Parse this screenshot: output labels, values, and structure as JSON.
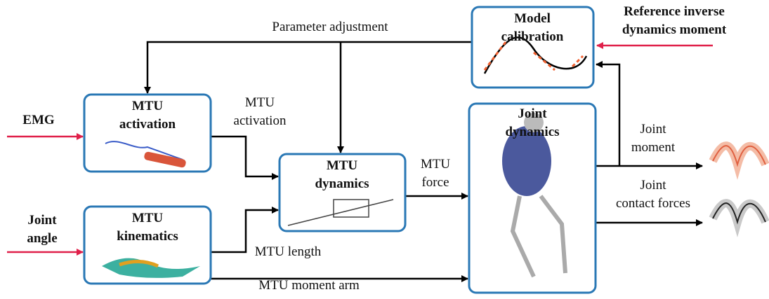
{
  "inputs": [
    {
      "lines": [
        "EMG"
      ]
    },
    {
      "lines": [
        "Joint",
        "angle"
      ]
    },
    {
      "lines": [
        "Reference inverse",
        "dynamics moment"
      ]
    }
  ],
  "nodes": [
    {
      "lines": [
        "MTU",
        "activation"
      ]
    },
    {
      "lines": [
        "MTU",
        "kinematics"
      ]
    },
    {
      "lines": [
        "MTU",
        "dynamics"
      ]
    },
    {
      "lines": [
        "Joint",
        "dynamics"
      ]
    },
    {
      "lines": [
        "Model",
        "calibration"
      ]
    }
  ],
  "edges": [
    {
      "lines": [
        "Parameter adjustment"
      ]
    },
    {
      "lines": [
        "MTU",
        "activation"
      ]
    },
    {
      "lines": [
        "MTU",
        "force"
      ]
    },
    {
      "lines": [
        "MTU length"
      ]
    },
    {
      "lines": [
        "MTU moment arm"
      ]
    },
    {
      "lines": [
        "Joint",
        "moment"
      ]
    },
    {
      "lines": [
        "Joint",
        "contact forces"
      ]
    }
  ]
}
